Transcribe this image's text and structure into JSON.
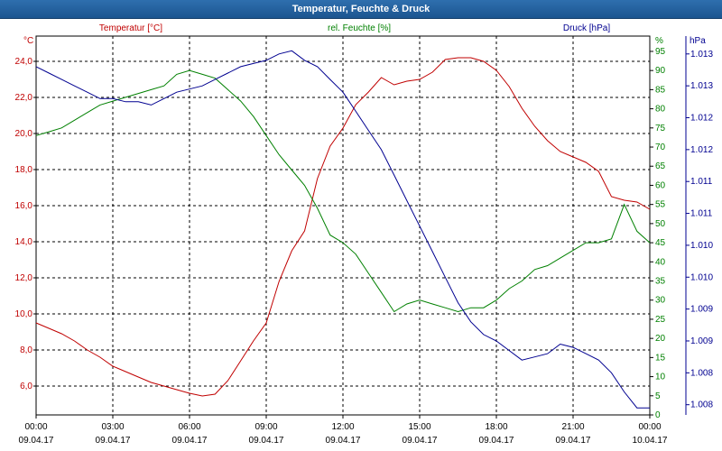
{
  "window_title": "Temperatur, Feuchte & Druck",
  "colors": {
    "temperature": "#c00000",
    "humidity": "#008000",
    "pressure": "#000090",
    "grid": "#000000"
  },
  "chart_data": {
    "type": "line",
    "x_labels": {
      "times": [
        "00:00",
        "03:00",
        "06:00",
        "09:00",
        "12:00",
        "15:00",
        "18:00",
        "21:00",
        "00:00"
      ],
      "dates": [
        "09.04.17",
        "09.04.17",
        "09.04.17",
        "09.04.17",
        "09.04.17",
        "09.04.17",
        "09.04.17",
        "09.04.17",
        "10.04.17"
      ]
    },
    "x_hours_range": [
      0,
      24
    ],
    "grid": true,
    "axes": {
      "left": {
        "unit": "°C",
        "ylim": [
          4.4,
          25.4
        ],
        "ticks": [
          6.0,
          8.0,
          10.0,
          12.0,
          14.0,
          16.0,
          18.0,
          20.0,
          22.0,
          24.0
        ],
        "tick_labels": [
          "6,0",
          "8,0",
          "10,0",
          "12,0",
          "14,0",
          "16,0",
          "18,0",
          "20,0",
          "22,0",
          "24,0"
        ]
      },
      "right_humidity": {
        "unit": "%",
        "ylim": [
          0,
          99
        ],
        "ticks": [
          0,
          5,
          10,
          15,
          20,
          25,
          30,
          35,
          40,
          45,
          50,
          55,
          60,
          65,
          70,
          75,
          80,
          85,
          90,
          95
        ],
        "tick_labels": [
          "0",
          "5",
          "10",
          "15",
          "20",
          "25",
          "30",
          "35",
          "40",
          "45",
          "50",
          "55",
          "60",
          "65",
          "70",
          "75",
          "80",
          "85",
          "90",
          "95"
        ]
      },
      "right_pressure": {
        "unit": "hPa",
        "ylim": [
          1007.84,
          1013.78
        ],
        "ticks": [
          1008.0,
          1008.5,
          1009.0,
          1009.5,
          1010.0,
          1010.5,
          1011.0,
          1011.5,
          1012.0,
          1012.5,
          1013.0,
          1013.5
        ],
        "tick_labels": [
          "1.008",
          "1.008",
          "1.009",
          "1.009",
          "1.010",
          "1.010",
          "1.011",
          "1.011",
          "1.012",
          "1.012",
          "1.013",
          "1.013"
        ]
      }
    },
    "series": [
      {
        "name": "Temperatur [°C]",
        "axis": "left",
        "x": [
          0,
          0.5,
          1,
          1.5,
          2,
          2.5,
          3,
          3.5,
          4,
          4.5,
          5,
          5.5,
          6,
          6.5,
          7,
          7.5,
          8,
          8.5,
          9,
          9.5,
          10,
          10.5,
          11,
          11.5,
          12,
          12.5,
          13,
          13.5,
          14,
          14.5,
          15,
          15.5,
          16,
          16.5,
          17,
          17.5,
          18,
          18.5,
          19,
          19.5,
          20,
          20.5,
          21,
          21.5,
          22,
          22.5,
          23,
          23.5,
          24
        ],
        "y": [
          9.5,
          9.2,
          8.9,
          8.5,
          8.0,
          7.6,
          7.1,
          6.8,
          6.5,
          6.2,
          6.0,
          5.8,
          5.6,
          5.45,
          5.55,
          6.3,
          7.4,
          8.5,
          9.5,
          11.8,
          13.5,
          14.6,
          17.5,
          19.3,
          20.3,
          21.6,
          22.3,
          23.1,
          22.7,
          22.9,
          23.0,
          23.4,
          24.1,
          24.2,
          24.2,
          24.0,
          23.5,
          22.6,
          21.4,
          20.4,
          19.6,
          19.0,
          18.7,
          18.4,
          17.9,
          16.5,
          16.3,
          16.2,
          15.8
        ]
      },
      {
        "name": "rel. Feuchte [%]",
        "axis": "right_humidity",
        "x": [
          0,
          0.5,
          1,
          1.5,
          2,
          2.5,
          3,
          3.5,
          4,
          4.5,
          5,
          5.5,
          6,
          6.5,
          7,
          7.5,
          8,
          8.5,
          9,
          9.5,
          10,
          10.5,
          11,
          11.5,
          12,
          12.5,
          13,
          13.5,
          14,
          14.5,
          15,
          15.5,
          16,
          16.5,
          17,
          17.5,
          18,
          18.5,
          19,
          19.5,
          20,
          20.5,
          21,
          21.5,
          22,
          22.5,
          23,
          23.5,
          24
        ],
        "y": [
          73,
          74,
          75,
          77,
          79,
          81,
          82,
          83,
          84,
          85,
          86,
          89,
          90,
          89,
          88,
          85,
          82,
          78,
          73,
          68,
          64,
          60,
          54,
          47,
          45,
          42,
          37,
          32,
          27,
          29,
          30,
          29,
          28,
          27,
          28,
          28,
          30,
          33,
          35,
          38,
          39,
          41,
          43,
          45,
          45,
          46,
          55,
          48,
          45
        ]
      },
      {
        "name": "Druck [hPa]",
        "axis": "right_pressure",
        "x": [
          0,
          0.5,
          1,
          1.5,
          2,
          2.5,
          3,
          3.5,
          4,
          4.5,
          5,
          5.5,
          6,
          6.5,
          7,
          7.5,
          8,
          8.5,
          9,
          9.5,
          10,
          10.5,
          11,
          11.5,
          12,
          12.5,
          13,
          13.5,
          14,
          14.5,
          15,
          15.5,
          16,
          16.5,
          17,
          17.5,
          18,
          18.5,
          19,
          19.5,
          20,
          20.5,
          21,
          21.5,
          22,
          22.5,
          23,
          23.5,
          24
        ],
        "y": [
          1013.3,
          1013.2,
          1013.1,
          1013.0,
          1012.9,
          1012.8,
          1012.8,
          1012.75,
          1012.75,
          1012.7,
          1012.8,
          1012.9,
          1012.95,
          1013.0,
          1013.1,
          1013.2,
          1013.3,
          1013.35,
          1013.4,
          1013.5,
          1013.55,
          1013.4,
          1013.3,
          1013.1,
          1012.9,
          1012.6,
          1012.3,
          1012.0,
          1011.6,
          1011.2,
          1010.8,
          1010.4,
          1010.0,
          1009.6,
          1009.3,
          1009.1,
          1009.0,
          1008.85,
          1008.7,
          1008.75,
          1008.8,
          1008.95,
          1008.9,
          1008.8,
          1008.7,
          1008.5,
          1008.2,
          1007.95,
          1007.95
        ]
      }
    ]
  }
}
